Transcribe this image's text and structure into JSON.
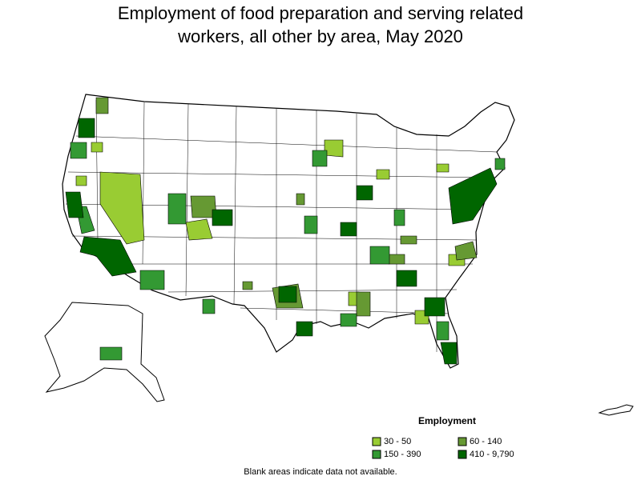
{
  "title_line1": "Employment of food preparation and serving related",
  "title_line2": "workers, all other by area, May 2020",
  "legend": {
    "title": "Employment",
    "items": [
      {
        "label": "30 - 50",
        "color": "#99cc33"
      },
      {
        "label": "60 - 140",
        "color": "#669933"
      },
      {
        "label": "150 - 390",
        "color": "#339933"
      },
      {
        "label": "410 - 9,790",
        "color": "#006600"
      }
    ]
  },
  "note": "Blank areas indicate data not available.",
  "colors": {
    "border": "#000000",
    "blank": "#ffffff"
  }
}
